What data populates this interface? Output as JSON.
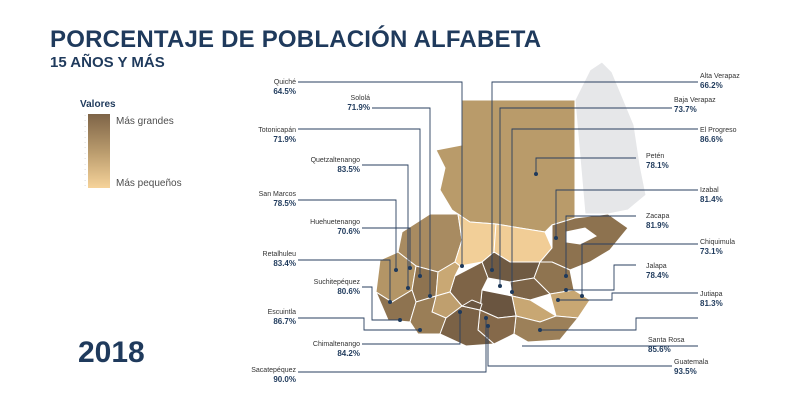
{
  "title": "PORCENTAJE DE POBLACIÓN ALFABETA",
  "subtitle": "15 AÑOS Y MÁS",
  "year": "2018",
  "legend": {
    "title": "Valores",
    "high": "Más grandes",
    "low": "Más pequeños"
  },
  "colors": {
    "title": "#1f3a5c",
    "leader_line": "#2a3f5f",
    "high": "#7e6447",
    "low": "#f6d39a",
    "neighbor": "#e6e7e9"
  },
  "departments": [
    {
      "name": "Quiché",
      "value": "64.5%"
    },
    {
      "name": "Sololá",
      "value": "71.9%"
    },
    {
      "name": "Totonicapán",
      "value": "71.9%"
    },
    {
      "name": "Quetzaltenango",
      "value": "83.5%"
    },
    {
      "name": "San Marcos",
      "value": "78.5%"
    },
    {
      "name": "Huehuetenango",
      "value": "70.6%"
    },
    {
      "name": "Retalhuleu",
      "value": "83.4%"
    },
    {
      "name": "Suchitepéquez",
      "value": "80.6%"
    },
    {
      "name": "Escuintla",
      "value": "86.7%"
    },
    {
      "name": "Chimaltenango",
      "value": "84.2%"
    },
    {
      "name": "Sacatepéquez",
      "value": "90.0%"
    },
    {
      "name": "Alta Verapaz",
      "value": "66.2%"
    },
    {
      "name": "Baja Verapaz",
      "value": "73.7%"
    },
    {
      "name": "El Progreso",
      "value": "86.6%"
    },
    {
      "name": "Petén",
      "value": "78.1%"
    },
    {
      "name": "Izabal",
      "value": "81.4%"
    },
    {
      "name": "Zacapa",
      "value": "81.9%"
    },
    {
      "name": "Chiquimula",
      "value": "73.1%"
    },
    {
      "name": "Jalapa",
      "value": "78.4%"
    },
    {
      "name": "Jutiapa",
      "value": "81.3%"
    },
    {
      "name": "Santa Rosa",
      "value": "85.6%"
    },
    {
      "name": "Guatemala",
      "value": "93.5%"
    }
  ]
}
